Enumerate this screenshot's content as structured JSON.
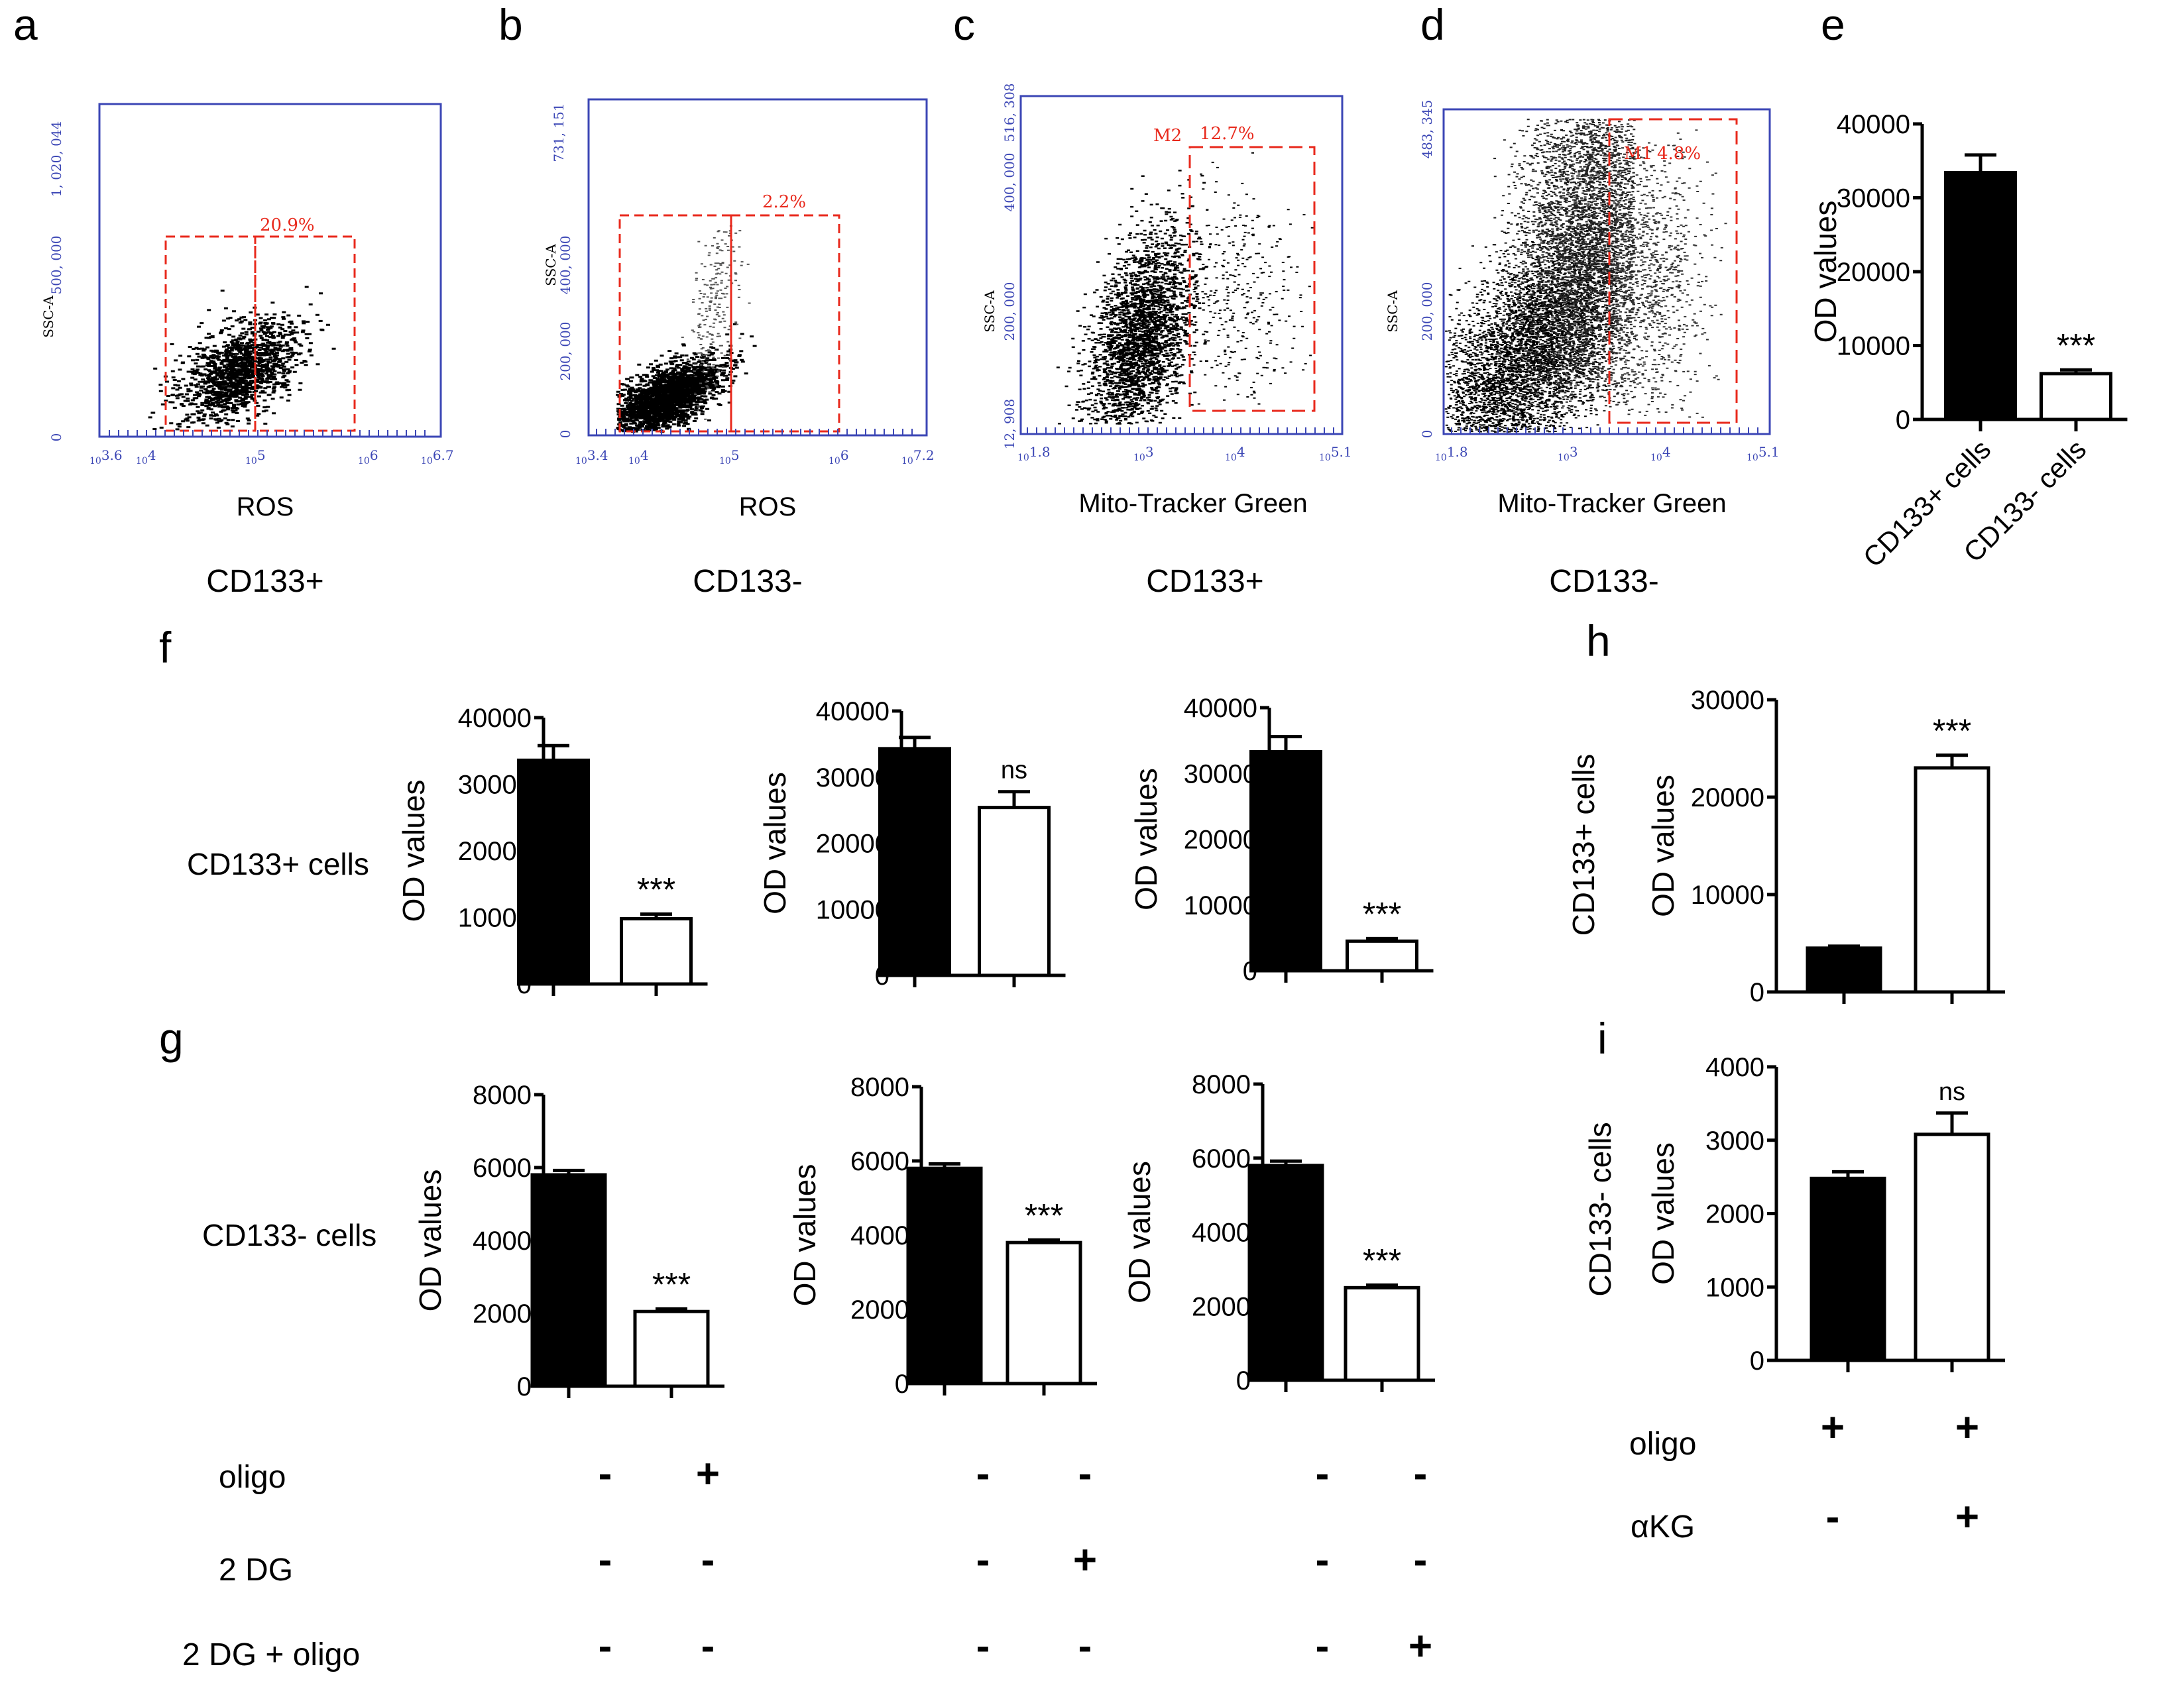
{
  "colors": {
    "facs_axis": "#3b46b5",
    "facs_gate": "#e8291c",
    "ink": "#000000",
    "fill_black": "#000000",
    "fill_white": "#ffffff"
  },
  "panels": {
    "a": {
      "letter": "a",
      "xlabel": "ROS",
      "group": "CD133+",
      "ylabel": "SSC-A",
      "ymax": "1, 020, 044",
      "ymid": "500, 000",
      "y0": "0",
      "xticks": [
        "3.6",
        "4",
        "5",
        "6",
        "6.7"
      ],
      "gates": [
        "20.9%"
      ]
    },
    "b": {
      "letter": "b",
      "xlabel": "ROS",
      "group": "CD133-",
      "ylabel": "SSC-A",
      "ymax": "731, 151",
      "ymid": "400, 000",
      "ylow": "200, 000",
      "y0": "0",
      "xticks": [
        "3.4",
        "4",
        "5",
        "6",
        "7.2"
      ],
      "gates": [
        "2.2%"
      ]
    },
    "c": {
      "letter": "c",
      "xlabel": "Mito-Tracker Green",
      "group": "CD133+",
      "ylabel": "SSC-A",
      "ymax": "516, 308",
      "ymid": "400, 000",
      "ylow": "200, 000",
      "y0": "12, 908",
      "xticks": [
        "1.8",
        "3",
        "4",
        "5.1"
      ],
      "gates": [
        "M2",
        "12.7%"
      ]
    },
    "d": {
      "letter": "d",
      "xlabel": "Mito-Tracker Green",
      "group": "CD133-",
      "ylabel": "SSC-A",
      "ymax": "483, 345",
      "ylow": "200, 000",
      "y0": "0",
      "xticks": [
        "1.8",
        "3",
        "4",
        "5.1"
      ],
      "gates": [
        "M1",
        "4.8%"
      ]
    },
    "e": {
      "letter": "e"
    },
    "f": {
      "letter": "f",
      "row_label": "CD133+ cells"
    },
    "g": {
      "letter": "g",
      "row_label": "CD133- cells"
    },
    "h": {
      "letter": "h",
      "side_label": "CD133+ cells"
    },
    "i": {
      "letter": "i",
      "side_label": "CD133- cells"
    }
  },
  "conditions": {
    "g": {
      "oligo": "oligo",
      "dg": "2 DG",
      "dg_oligo": "2 DG + oligo",
      "signs": [
        [
          "-",
          "+",
          "-",
          "-",
          "-",
          "-"
        ],
        [
          "-",
          "-",
          "-",
          "+",
          "-",
          "-"
        ],
        [
          "-",
          "-",
          "-",
          "-",
          "-",
          "+"
        ]
      ]
    },
    "hi": {
      "oligo": "oligo",
      "akg": "αKG",
      "signs": [
        [
          "+",
          "+"
        ],
        [
          "-",
          "+"
        ]
      ]
    }
  },
  "chart_data": [
    {
      "panel": "e",
      "type": "bar",
      "categories": [
        "CD133+ cells",
        "CD133- cells"
      ],
      "values": [
        33400,
        6200
      ],
      "errors": [
        2400,
        500
      ],
      "ylabel": "OD values",
      "ylim": [
        0,
        40000
      ],
      "yticks": [
        "0",
        "10000",
        "20000",
        "30000",
        "40000"
      ],
      "annotations": [
        "",
        "***"
      ]
    },
    {
      "panel": "f1",
      "type": "bar",
      "categories": [
        "",
        ""
      ],
      "values": [
        33600,
        9800
      ],
      "errors": [
        2200,
        700
      ],
      "ylabel": "OD values",
      "ylim": [
        0,
        40000
      ],
      "yticks": [
        "0",
        "10000",
        "20000",
        "30000",
        "40000"
      ],
      "annotations": [
        "",
        "***"
      ]
    },
    {
      "panel": "f2",
      "type": "bar",
      "categories": [
        "",
        ""
      ],
      "values": [
        34300,
        25400
      ],
      "errors": [
        1700,
        2400
      ],
      "ylabel": "OD values",
      "ylim": [
        0,
        40000
      ],
      "yticks": [
        "0",
        "10000",
        "20000",
        "30000",
        "40000"
      ],
      "annotations": [
        "",
        "ns"
      ]
    },
    {
      "panel": "f3",
      "type": "bar",
      "categories": [
        "",
        ""
      ],
      "values": [
        33300,
        4500
      ],
      "errors": [
        2300,
        400
      ],
      "ylabel": "OD values",
      "ylim": [
        0,
        40000
      ],
      "yticks": [
        "0",
        "10000",
        "20000",
        "30000",
        "40000"
      ],
      "annotations": [
        "",
        "***"
      ]
    },
    {
      "panel": "g1",
      "type": "bar",
      "categories": [
        "",
        ""
      ],
      "values": [
        5800,
        2050
      ],
      "errors": [
        120,
        70
      ],
      "ylabel": "OD values",
      "ylim": [
        0,
        8000
      ],
      "yticks": [
        "0",
        "2000",
        "4000",
        "6000",
        "8000"
      ],
      "annotations": [
        "",
        "***"
      ]
    },
    {
      "panel": "g2",
      "type": "bar",
      "categories": [
        "",
        ""
      ],
      "values": [
        5800,
        3800
      ],
      "errors": [
        120,
        70
      ],
      "ylabel": "OD values",
      "ylim": [
        0,
        8000
      ],
      "yticks": [
        "0",
        "2000",
        "4000",
        "6000",
        "8000"
      ],
      "annotations": [
        "",
        "***"
      ]
    },
    {
      "panel": "g3",
      "type": "bar",
      "categories": [
        "",
        ""
      ],
      "values": [
        5800,
        2500
      ],
      "errors": [
        120,
        70
      ],
      "ylabel": "OD values",
      "ylim": [
        0,
        8000
      ],
      "yticks": [
        "0",
        "2000",
        "4000",
        "6000",
        "8000"
      ],
      "annotations": [
        "",
        "***"
      ]
    },
    {
      "panel": "h",
      "type": "bar",
      "categories": [
        "",
        ""
      ],
      "values": [
        4500,
        23000
      ],
      "errors": [
        200,
        1300
      ],
      "ylabel": "OD values",
      "ylim": [
        0,
        30000
      ],
      "yticks": [
        "0",
        "10000",
        "20000",
        "30000"
      ],
      "annotations": [
        "",
        "***"
      ]
    },
    {
      "panel": "i",
      "type": "bar",
      "categories": [
        "",
        ""
      ],
      "values": [
        2480,
        3080
      ],
      "errors": [
        90,
        290
      ],
      "ylabel": "OD values",
      "ylim": [
        0,
        4000
      ],
      "yticks": [
        "0",
        "1000",
        "2000",
        "3000",
        "4000"
      ],
      "annotations": [
        "",
        "ns"
      ]
    }
  ]
}
